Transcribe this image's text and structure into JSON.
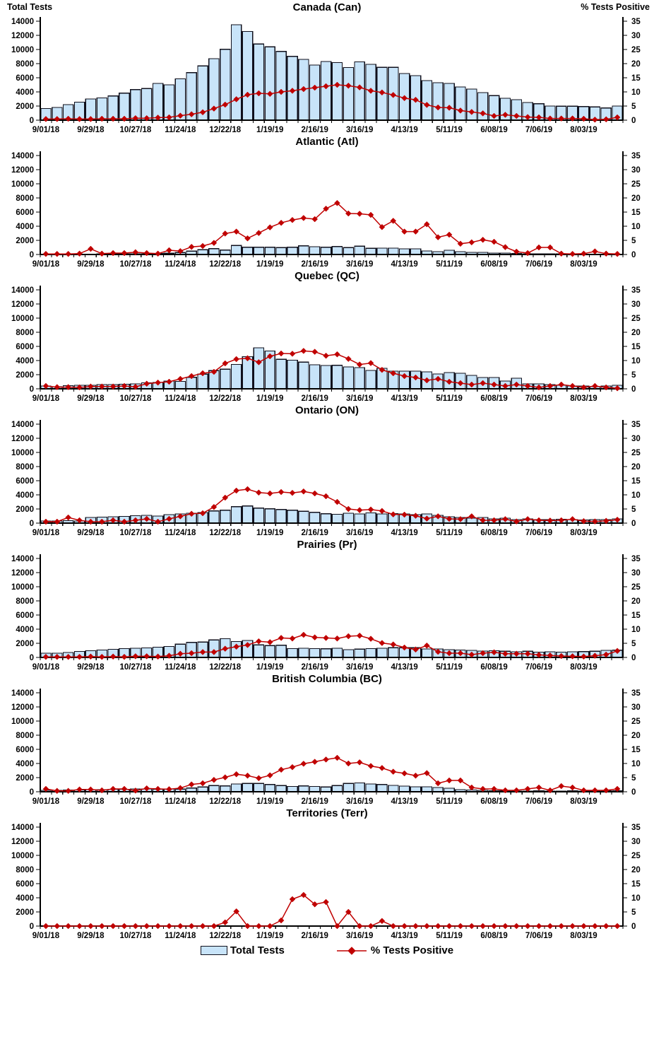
{
  "header": {
    "left_label": "Total Tests",
    "right_label": "% Tests Positive"
  },
  "legend": {
    "tests_label": "Total Tests",
    "positive_label": "% Tests Positive"
  },
  "colors": {
    "bar_fill": "#C8E4F9",
    "bar_stroke": "#10101C",
    "line": "#C00000",
    "axis": "#000000",
    "text": "#000000"
  },
  "axes": {
    "left_range": [
      0,
      14000
    ],
    "right_range": [
      0,
      35
    ],
    "left_ticks": [
      0,
      2000,
      4000,
      6000,
      8000,
      10000,
      12000,
      14000
    ],
    "right_ticks": [
      0,
      5,
      10,
      15,
      20,
      25,
      30,
      35
    ],
    "x_labels": [
      "9/01/18",
      "9/29/18",
      "10/27/18",
      "11/24/18",
      "12/22/18",
      "1/19/19",
      "2/16/19",
      "3/16/19",
      "4/13/19",
      "5/11/19",
      "6/08/19",
      "7/06/19",
      "8/03/19"
    ],
    "weeks": [
      "9/01/18",
      "9/08/18",
      "9/15/18",
      "9/22/18",
      "9/29/18",
      "10/06/18",
      "10/13/18",
      "10/20/18",
      "10/27/18",
      "11/03/18",
      "11/10/18",
      "11/17/18",
      "11/24/18",
      "12/01/18",
      "12/08/18",
      "12/15/18",
      "12/22/18",
      "12/29/18",
      "1/05/19",
      "1/12/19",
      "1/19/19",
      "1/26/19",
      "2/02/19",
      "2/09/19",
      "2/16/19",
      "2/23/19",
      "3/02/19",
      "3/09/19",
      "3/16/19",
      "3/23/19",
      "3/30/19",
      "4/06/19",
      "4/13/19",
      "4/20/19",
      "4/27/19",
      "5/04/19",
      "5/11/19",
      "5/18/19",
      "5/25/19",
      "6/01/19",
      "6/08/19",
      "6/15/19",
      "6/22/19",
      "6/29/19",
      "7/06/19",
      "7/13/19",
      "7/20/19",
      "7/27/19",
      "8/03/19",
      "8/10/19",
      "8/17/19",
      "8/24/19"
    ]
  },
  "chart_data": [
    {
      "id": "canada",
      "type": "combo-bar-line",
      "title": "Canada (Can)",
      "ylabel_left": "Total Tests",
      "ylabel_right": "% Tests Positive",
      "total_tests": [
        1650,
        1800,
        2200,
        2550,
        2990,
        3160,
        3420,
        3830,
        4320,
        4470,
        5200,
        5000,
        5855,
        6720,
        7680,
        8700,
        10030,
        13500,
        12550,
        10780,
        10380,
        9740,
        9015,
        8610,
        7800,
        8300,
        8150,
        7450,
        8250,
        7900,
        7470,
        7480,
        6600,
        6300,
        5600,
        5300,
        5200,
        4700,
        4400,
        3900,
        3480,
        3100,
        2900,
        2490,
        2320,
        2000,
        1970,
        1970,
        1910,
        1860,
        1740,
        2000
      ],
      "pct_positive": [
        0.4,
        0.4,
        0.5,
        0.4,
        0.4,
        0.5,
        0.5,
        0.5,
        0.7,
        0.7,
        0.9,
        1.0,
        1.6,
        2.1,
        2.8,
        4.1,
        5.5,
        7.4,
        9.0,
        9.5,
        9.3,
        10.0,
        10.4,
        11.0,
        11.5,
        12.0,
        12.5,
        12.2,
        11.6,
        10.4,
        9.8,
        8.9,
        7.8,
        7.2,
        5.4,
        4.5,
        4.4,
        3.4,
        2.9,
        2.4,
        1.5,
        1.9,
        1.5,
        1.1,
        1.0,
        0.6,
        0.6,
        0.6,
        0.5,
        0.2,
        0.3,
        1.0
      ]
    },
    {
      "id": "atlantic",
      "type": "combo-bar-line",
      "title": "Atlantic (Atl)",
      "total_tests": [
        30,
        30,
        40,
        40,
        50,
        60,
        60,
        70,
        80,
        90,
        150,
        180,
        290,
        490,
        670,
        840,
        640,
        1280,
        1040,
        1040,
        1040,
        990,
        1040,
        1220,
        1100,
        1040,
        1130,
        990,
        1190,
        870,
        900,
        900,
        800,
        800,
        500,
        400,
        600,
        400,
        300,
        300,
        200,
        200,
        150,
        100,
        100,
        100,
        80,
        60,
        50,
        50,
        50,
        50
      ],
      "pct_positive": [
        0.2,
        0.2,
        0.2,
        0.3,
        2.0,
        0.3,
        0.5,
        0.5,
        0.8,
        0.5,
        0.3,
        1.5,
        1.2,
        2.7,
        3.0,
        4.1,
        7.4,
        8.1,
        5.7,
        7.6,
        9.6,
        11.2,
        12.2,
        12.9,
        12.5,
        16.2,
        18.2,
        14.5,
        14.4,
        14.0,
        9.7,
        11.9,
        8.1,
        8.1,
        10.7,
        6.1,
        7.0,
        3.8,
        4.3,
        5.2,
        4.5,
        2.6,
        1.0,
        0.5,
        2.5,
        2.5,
        0.3,
        0.2,
        0.3,
        1.1,
        0.3,
        0.2
      ]
    },
    {
      "id": "quebec",
      "type": "combo-bar-line",
      "title": "Quebec (QC)",
      "total_tests": [
        400,
        300,
        450,
        500,
        500,
        600,
        600,
        650,
        700,
        850,
        900,
        1100,
        1050,
        1620,
        2060,
        2580,
        2780,
        3450,
        4550,
        5800,
        5350,
        4180,
        4060,
        3770,
        3390,
        3300,
        3330,
        3100,
        3000,
        2600,
        2900,
        2500,
        2500,
        2500,
        2400,
        2100,
        2300,
        2200,
        1900,
        1600,
        1600,
        1100,
        1500,
        700,
        700,
        600,
        500,
        400,
        400,
        300,
        400,
        500
      ],
      "pct_positive": [
        1.0,
        0.6,
        0.6,
        0.5,
        0.8,
        0.8,
        0.8,
        1.0,
        0.7,
        1.8,
        2.2,
        2.5,
        3.5,
        4.5,
        5.5,
        6.0,
        9.0,
        10.5,
        10.8,
        9.4,
        11.5,
        12.5,
        12.4,
        13.4,
        13.1,
        11.7,
        12.2,
        10.6,
        8.6,
        9.1,
        6.7,
        5.5,
        4.5,
        4.0,
        3.0,
        3.5,
        2.5,
        2.0,
        1.5,
        2.0,
        1.5,
        1.0,
        1.5,
        1.0,
        0.5,
        1.0,
        1.5,
        1.0,
        0.5,
        1.0,
        0.5,
        0.2
      ]
    },
    {
      "id": "ontario",
      "type": "combo-bar-line",
      "title": "Ontario (ON)",
      "total_tests": [
        300,
        300,
        350,
        300,
        800,
        850,
        900,
        950,
        1050,
        1100,
        1000,
        1200,
        1300,
        1400,
        1500,
        1740,
        1830,
        2320,
        2440,
        2120,
        2030,
        1910,
        1830,
        1680,
        1510,
        1330,
        1250,
        1400,
        1300,
        1450,
        1300,
        1350,
        1300,
        1200,
        1300,
        1100,
        900,
        800,
        700,
        800,
        600,
        700,
        500,
        600,
        500,
        500,
        550,
        500,
        450,
        500,
        500,
        600
      ],
      "pct_positive": [
        0.5,
        0.5,
        2.0,
        1.0,
        0.5,
        0.5,
        1.0,
        0.5,
        1.0,
        1.5,
        0.5,
        1.5,
        2.4,
        3.3,
        3.5,
        5.7,
        9.0,
        11.5,
        12.0,
        10.8,
        10.5,
        11.0,
        10.7,
        11.2,
        10.5,
        9.5,
        7.5,
        5.0,
        4.6,
        4.8,
        4.3,
        3.1,
        3.0,
        2.6,
        1.6,
        2.4,
        1.5,
        1.4,
        2.4,
        1.0,
        1.0,
        1.4,
        0.6,
        1.4,
        1.0,
        0.9,
        1.0,
        1.4,
        0.7,
        0.6,
        0.8,
        1.2
      ]
    },
    {
      "id": "prairies",
      "type": "combo-bar-line",
      "title": "Prairies (Pr)",
      "total_tests": [
        600,
        600,
        700,
        850,
        950,
        1050,
        1150,
        1250,
        1300,
        1350,
        1450,
        1550,
        1890,
        2120,
        2180,
        2470,
        2640,
        2260,
        2400,
        1770,
        1680,
        1740,
        1250,
        1300,
        1250,
        1220,
        1300,
        1100,
        1190,
        1250,
        1300,
        1390,
        1390,
        1390,
        1200,
        1200,
        1100,
        1050,
        1000,
        900,
        950,
        870,
        800,
        870,
        750,
        800,
        750,
        800,
        840,
        870,
        1000,
        1040
      ],
      "pct_positive": [
        0.2,
        0.2,
        0.2,
        0.2,
        0.3,
        0.2,
        0.3,
        0.2,
        0.4,
        0.4,
        0.3,
        0.6,
        1.3,
        1.5,
        1.9,
        1.9,
        3.1,
        3.8,
        4.4,
        5.7,
        5.4,
        6.9,
        6.7,
        8.0,
        7.1,
        6.9,
        6.7,
        7.5,
        7.7,
        6.6,
        5.1,
        4.6,
        3.5,
        2.8,
        4.2,
        2.0,
        1.5,
        1.5,
        1.0,
        1.5,
        1.8,
        1.3,
        1.3,
        1.3,
        0.9,
        0.7,
        0.5,
        0.4,
        0.3,
        0.6,
        1.0,
        2.3
      ]
    },
    {
      "id": "british-columbia",
      "type": "combo-bar-line",
      "title": "British Columbia (BC)",
      "total_tests": [
        200,
        200,
        250,
        250,
        300,
        300,
        350,
        350,
        400,
        400,
        350,
        400,
        380,
        520,
        670,
        870,
        810,
        1100,
        1190,
        1160,
        1040,
        870,
        750,
        810,
        750,
        670,
        870,
        1160,
        1250,
        1100,
        1015,
        900,
        800,
        700,
        700,
        600,
        500,
        300,
        250,
        200,
        150,
        150,
        100,
        100,
        150,
        100,
        100,
        150,
        100,
        100,
        150,
        150
      ],
      "pct_positive": [
        1.0,
        0.3,
        0.3,
        0.8,
        0.8,
        0.5,
        1.0,
        1.0,
        0.4,
        1.2,
        1.0,
        0.9,
        1.3,
        2.6,
        3.0,
        4.2,
        5.1,
        6.2,
        5.7,
        4.8,
        5.8,
        7.8,
        8.7,
        9.9,
        10.6,
        11.4,
        12.0,
        10.0,
        10.4,
        9.1,
        8.4,
        7.1,
        6.5,
        5.7,
        6.6,
        3.0,
        4.0,
        4.0,
        1.5,
        1.0,
        1.0,
        0.5,
        0.5,
        1.0,
        1.5,
        0.5,
        2.0,
        1.5,
        0.5,
        0.5,
        0.5,
        1.0
      ]
    },
    {
      "id": "territories",
      "type": "combo-bar-line",
      "title": "Territories (Terr)",
      "total_tests": [
        0,
        0,
        0,
        0,
        0,
        0,
        0,
        0,
        0,
        0,
        0,
        0,
        0,
        0,
        0,
        0,
        0,
        0,
        0,
        0,
        0,
        0,
        0,
        0,
        0,
        0,
        0,
        0,
        0,
        0,
        0,
        0,
        0,
        0,
        0,
        0,
        0,
        0,
        0,
        0,
        0,
        0,
        0,
        0,
        0,
        0,
        0,
        0,
        0,
        0,
        0,
        0
      ],
      "pct_positive": [
        0,
        0,
        0,
        0,
        0,
        0,
        0,
        0,
        0,
        0,
        0,
        0,
        0,
        0,
        0,
        0,
        1.3,
        5.2,
        0,
        0,
        0,
        2.0,
        9.5,
        11.0,
        7.7,
        8.5,
        0,
        5.0,
        0,
        0,
        1.8,
        0,
        0,
        0,
        0,
        0,
        0,
        0,
        0,
        0,
        0,
        0,
        0,
        0,
        0,
        0,
        0,
        0,
        0,
        0,
        0,
        0
      ]
    }
  ]
}
